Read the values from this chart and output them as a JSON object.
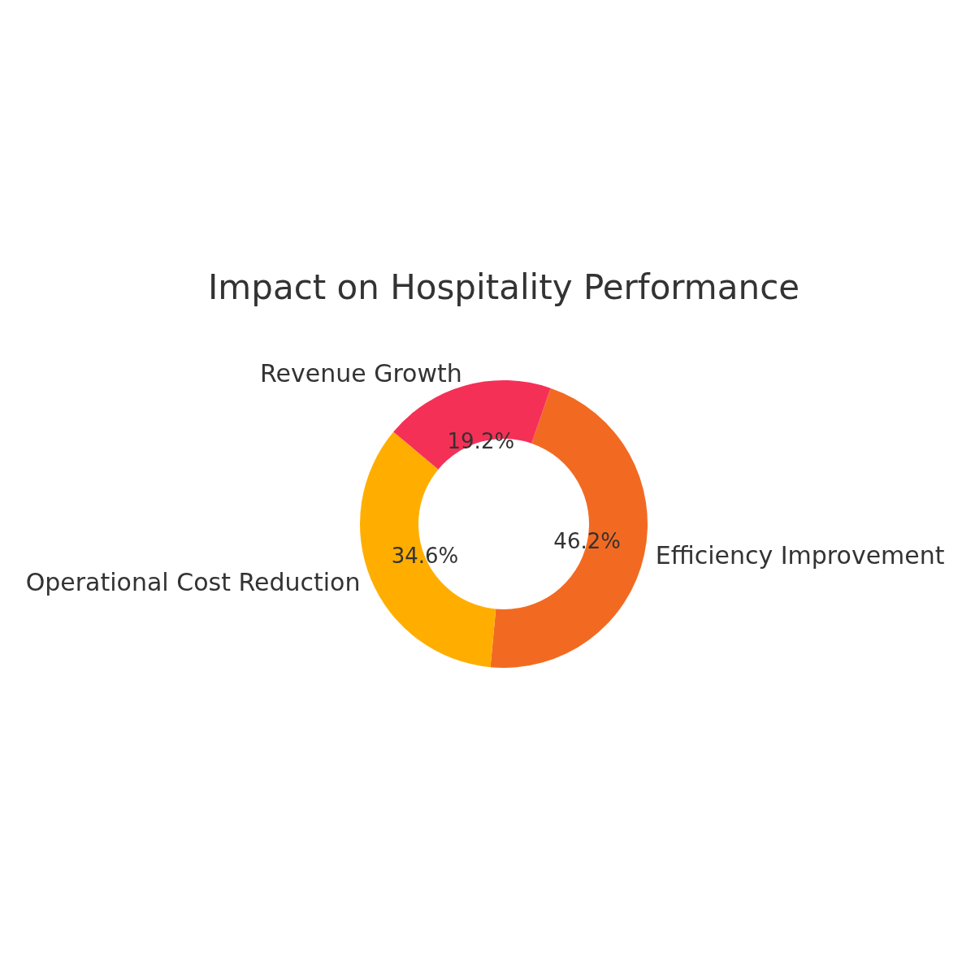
{
  "chart_data": {
    "type": "donut",
    "title": "Impact on Hospitality Performance",
    "categories": [
      "Efficiency Improvement",
      "Operational Cost Reduction",
      "Revenue Growth"
    ],
    "values": [
      46.2,
      34.6,
      19.2
    ],
    "colors": [
      "#f26a22",
      "#ffae00",
      "#f53056"
    ],
    "value_labels": [
      "46.2%",
      "34.6%",
      "19.2%"
    ]
  }
}
